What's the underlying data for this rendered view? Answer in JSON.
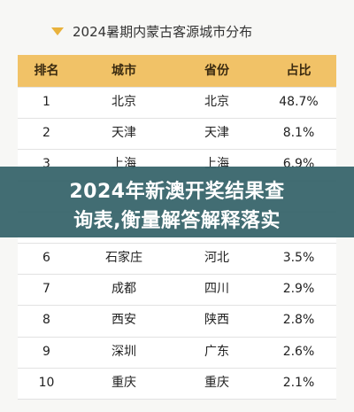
{
  "title": "2024暑期内蒙古客源城市分布",
  "table": {
    "header": [
      "排名",
      "城市",
      "省份",
      "占比"
    ],
    "rows": [
      [
        "1",
        "北京",
        "北京",
        "48.7%"
      ],
      [
        "2",
        "天津",
        "天津",
        "8.1%"
      ],
      [
        "3",
        "上海",
        "上海",
        "6.9%"
      ],
      [
        "6",
        "石家庄",
        "河北",
        "3.5%"
      ],
      [
        "7",
        "成都",
        "四川",
        "2.9%"
      ],
      [
        "8",
        "西安",
        "陕西",
        "2.8%"
      ],
      [
        "9",
        "深圳",
        "广东",
        "2.6%"
      ],
      [
        "10",
        "重庆",
        "重庆",
        "2.1%"
      ]
    ]
  },
  "banner": {
    "lines": [
      "2024年新澳开奖结果查",
      "询表,衡量解答解释落实"
    ]
  }
}
